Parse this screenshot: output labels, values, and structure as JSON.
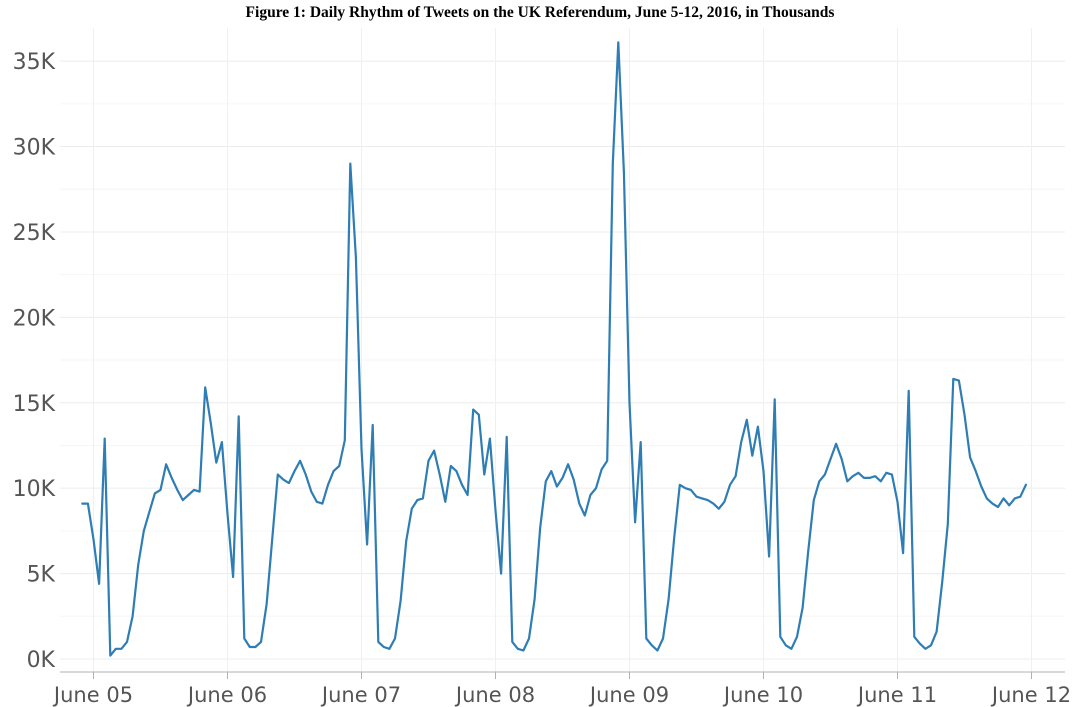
{
  "chart_data": {
    "type": "line",
    "title": "Figure 1: Daily Rhythm of Tweets on the UK Referendum, June 5-12, 2016, in Thousands",
    "xlabel": "",
    "ylabel": "",
    "ylim": [
      0,
      36500
    ],
    "xlim": [
      "2016-06-04 18:00",
      "2016-06-12 06:00"
    ],
    "grid": true,
    "line_color": "#2e7db5",
    "y_ticks": [
      {
        "value": 0,
        "label": "0K"
      },
      {
        "value": 5000,
        "label": "5K"
      },
      {
        "value": 10000,
        "label": "10K"
      },
      {
        "value": 15000,
        "label": "15K"
      },
      {
        "value": 20000,
        "label": "20K"
      },
      {
        "value": 25000,
        "label": "25K"
      },
      {
        "value": 30000,
        "label": "30K"
      },
      {
        "value": 35000,
        "label": "35K"
      }
    ],
    "x_ticks": [
      {
        "value": "2016-06-05 00:00",
        "label": "June 05"
      },
      {
        "value": "2016-06-06 00:00",
        "label": "June 06"
      },
      {
        "value": "2016-06-07 00:00",
        "label": "June 07"
      },
      {
        "value": "2016-06-08 00:00",
        "label": "June 08"
      },
      {
        "value": "2016-06-09 00:00",
        "label": "June 09"
      },
      {
        "value": "2016-06-10 00:00",
        "label": "June 10"
      },
      {
        "value": "2016-06-11 00:00",
        "label": "June 11"
      },
      {
        "value": "2016-06-12 00:00",
        "label": "June 12"
      }
    ],
    "series": [
      {
        "x": [
          "2016-06-04 22:00",
          "2016-06-04 23:00",
          "2016-06-05 00:00",
          "2016-06-05 01:00",
          "2016-06-05 02:00",
          "2016-06-05 03:00",
          "2016-06-05 04:00",
          "2016-06-05 05:00",
          "2016-06-05 06:00",
          "2016-06-05 07:00",
          "2016-06-05 08:00",
          "2016-06-05 09:00",
          "2016-06-05 10:00",
          "2016-06-05 11:00",
          "2016-06-05 12:00",
          "2016-06-05 13:00",
          "2016-06-05 14:00",
          "2016-06-05 15:00",
          "2016-06-05 16:00",
          "2016-06-05 17:00",
          "2016-06-05 18:00",
          "2016-06-05 19:00",
          "2016-06-05 20:00",
          "2016-06-05 21:00",
          "2016-06-05 22:00",
          "2016-06-05 23:00",
          "2016-06-06 00:00",
          "2016-06-06 01:00",
          "2016-06-06 02:00",
          "2016-06-06 03:00",
          "2016-06-06 04:00",
          "2016-06-06 05:00",
          "2016-06-06 06:00",
          "2016-06-06 07:00",
          "2016-06-06 08:00",
          "2016-06-06 09:00",
          "2016-06-06 10:00",
          "2016-06-06 11:00",
          "2016-06-06 12:00",
          "2016-06-06 13:00",
          "2016-06-06 14:00",
          "2016-06-06 15:00",
          "2016-06-06 16:00",
          "2016-06-06 17:00",
          "2016-06-06 18:00",
          "2016-06-06 19:00",
          "2016-06-06 20:00",
          "2016-06-06 21:00",
          "2016-06-06 22:00",
          "2016-06-06 23:00",
          "2016-06-07 00:00",
          "2016-06-07 01:00",
          "2016-06-07 02:00",
          "2016-06-07 03:00",
          "2016-06-07 04:00",
          "2016-06-07 05:00",
          "2016-06-07 06:00",
          "2016-06-07 07:00",
          "2016-06-07 08:00",
          "2016-06-07 09:00",
          "2016-06-07 10:00",
          "2016-06-07 11:00",
          "2016-06-07 12:00",
          "2016-06-07 13:00",
          "2016-06-07 14:00",
          "2016-06-07 15:00",
          "2016-06-07 16:00",
          "2016-06-07 17:00",
          "2016-06-07 18:00",
          "2016-06-07 19:00",
          "2016-06-07 20:00",
          "2016-06-07 21:00",
          "2016-06-07 22:00",
          "2016-06-07 23:00",
          "2016-06-08 00:00",
          "2016-06-08 01:00",
          "2016-06-08 02:00",
          "2016-06-08 03:00",
          "2016-06-08 04:00",
          "2016-06-08 05:00",
          "2016-06-08 06:00",
          "2016-06-08 07:00",
          "2016-06-08 08:00",
          "2016-06-08 09:00",
          "2016-06-08 10:00",
          "2016-06-08 11:00",
          "2016-06-08 12:00",
          "2016-06-08 13:00",
          "2016-06-08 14:00",
          "2016-06-08 15:00",
          "2016-06-08 16:00",
          "2016-06-08 17:00",
          "2016-06-08 18:00",
          "2016-06-08 19:00",
          "2016-06-08 20:00",
          "2016-06-08 21:00",
          "2016-06-08 22:00",
          "2016-06-08 23:00",
          "2016-06-09 00:00",
          "2016-06-09 01:00",
          "2016-06-09 02:00",
          "2016-06-09 03:00",
          "2016-06-09 04:00",
          "2016-06-09 05:00",
          "2016-06-09 06:00",
          "2016-06-09 07:00",
          "2016-06-09 08:00",
          "2016-06-09 09:00",
          "2016-06-09 10:00",
          "2016-06-09 11:00",
          "2016-06-09 12:00",
          "2016-06-09 13:00",
          "2016-06-09 14:00",
          "2016-06-09 15:00",
          "2016-06-09 16:00",
          "2016-06-09 17:00",
          "2016-06-09 18:00",
          "2016-06-09 19:00",
          "2016-06-09 20:00",
          "2016-06-09 21:00",
          "2016-06-09 22:00",
          "2016-06-09 23:00",
          "2016-06-10 00:00",
          "2016-06-10 01:00",
          "2016-06-10 02:00",
          "2016-06-10 03:00",
          "2016-06-10 04:00",
          "2016-06-10 05:00",
          "2016-06-10 06:00",
          "2016-06-10 07:00",
          "2016-06-10 08:00",
          "2016-06-10 09:00",
          "2016-06-10 10:00",
          "2016-06-10 11:00",
          "2016-06-10 12:00",
          "2016-06-10 13:00",
          "2016-06-10 14:00",
          "2016-06-10 15:00",
          "2016-06-10 16:00",
          "2016-06-10 17:00",
          "2016-06-10 18:00",
          "2016-06-10 19:00",
          "2016-06-10 20:00",
          "2016-06-10 21:00",
          "2016-06-10 22:00",
          "2016-06-10 23:00",
          "2016-06-11 00:00",
          "2016-06-11 01:00",
          "2016-06-11 02:00",
          "2016-06-11 03:00",
          "2016-06-11 04:00",
          "2016-06-11 05:00",
          "2016-06-11 06:00",
          "2016-06-11 07:00",
          "2016-06-11 08:00",
          "2016-06-11 09:00",
          "2016-06-11 10:00",
          "2016-06-11 11:00",
          "2016-06-11 12:00",
          "2016-06-11 13:00",
          "2016-06-11 14:00",
          "2016-06-11 15:00",
          "2016-06-11 16:00",
          "2016-06-11 17:00",
          "2016-06-11 18:00",
          "2016-06-11 19:00",
          "2016-06-11 20:00",
          "2016-06-11 21:00",
          "2016-06-11 22:00",
          "2016-06-11 23:00"
        ],
        "values": [
          9100,
          9100,
          7000,
          4400,
          12900,
          200,
          600,
          600,
          1000,
          2500,
          5500,
          7500,
          8600,
          9700,
          9900,
          11400,
          10600,
          9900,
          9300,
          9600,
          9900,
          9800,
          15900,
          13800,
          11500,
          12700,
          8500,
          4800,
          14200,
          1200,
          700,
          700,
          1000,
          3200,
          7000,
          10800,
          10500,
          10300,
          11000,
          11600,
          10800,
          9800,
          9200,
          9100,
          10200,
          11000,
          11300,
          12800,
          29000,
          23500,
          12300,
          6700,
          13700,
          1000,
          700,
          600,
          1200,
          3400,
          6900,
          8800,
          9300,
          9400,
          11600,
          12200,
          10800,
          9200,
          11300,
          11000,
          10200,
          9600,
          14600,
          14300,
          10800,
          12900,
          8700,
          5000,
          13000,
          1000,
          600,
          500,
          1200,
          3500,
          7700,
          10400,
          11000,
          10100,
          10600,
          11400,
          10500,
          9100,
          8400,
          9600,
          10000,
          11100,
          11600,
          29000,
          36100,
          28500,
          15000,
          8000,
          12700,
          1200,
          800,
          500,
          1200,
          3500,
          7100,
          10200,
          10000,
          9900,
          9500,
          9400,
          9300,
          9100,
          8800,
          9200,
          10200,
          10700,
          12700,
          14000,
          11900,
          13600,
          11000,
          6000,
          15200,
          1300,
          800,
          600,
          1300,
          3000,
          6300,
          9300,
          10400,
          10800,
          11700,
          12600,
          11700,
          10400,
          10700,
          10900,
          10600,
          10600,
          10700,
          10400,
          10900,
          10800,
          9200,
          6200,
          15700,
          1300,
          900,
          600,
          800,
          1600,
          4500,
          7900,
          16400,
          16300,
          14300,
          11800,
          11000,
          10100,
          9400,
          9100,
          8900,
          9400,
          9000,
          9400,
          9500,
          10200
        ]
      }
    ]
  }
}
